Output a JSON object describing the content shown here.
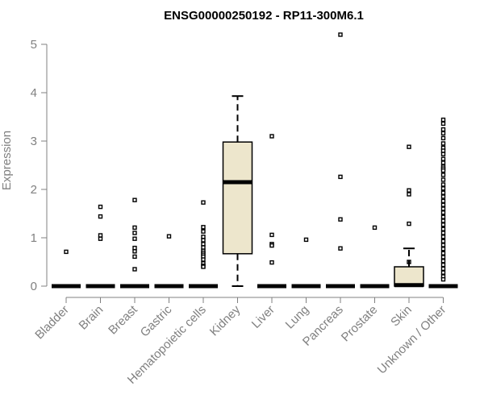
{
  "chart_data": {
    "type": "box",
    "title": "ENSG00000250192 - RP11-300M6.1",
    "xlabel": "",
    "ylabel": "Expression",
    "ylim": [
      0,
      5.2
    ],
    "yticks": [
      0,
      1,
      2,
      3,
      4,
      5
    ],
    "categories": [
      "Bladder",
      "Brain",
      "Breast",
      "Gastric",
      "Hematopoietic cells",
      "Kidney",
      "Liver",
      "Lung",
      "Pancreas",
      "Prostate",
      "Skin",
      "Unknown / Other"
    ],
    "box_color": "#ede6cc",
    "boxes": [
      {
        "category": "Bladder",
        "q1": 0,
        "median": 0,
        "q3": 0,
        "whisker_low": 0,
        "whisker_high": 0,
        "outliers": [
          0.71
        ]
      },
      {
        "category": "Brain",
        "q1": 0,
        "median": 0,
        "q3": 0,
        "whisker_low": 0,
        "whisker_high": 0,
        "outliers": [
          1.64,
          1.44,
          1.05,
          0.98
        ]
      },
      {
        "category": "Breast",
        "q1": 0,
        "median": 0,
        "q3": 0,
        "whisker_low": 0,
        "whisker_high": 0,
        "outliers": [
          1.78,
          1.21,
          1.1,
          0.98,
          0.79,
          0.72,
          0.61,
          0.35
        ]
      },
      {
        "category": "Gastric",
        "q1": 0,
        "median": 0,
        "q3": 0,
        "whisker_low": 0,
        "whisker_high": 0,
        "outliers": [
          1.03
        ]
      },
      {
        "category": "Hematopoietic cells",
        "q1": 0,
        "median": 0,
        "q3": 0,
        "whisker_low": 0,
        "whisker_high": 0,
        "outliers": [
          1.73,
          1.22,
          1.13,
          1.02,
          0.95,
          0.87,
          0.8,
          0.73,
          0.69,
          0.65,
          0.61,
          0.55,
          0.47,
          0.42,
          0.4
        ]
      },
      {
        "category": "Kidney",
        "q1": 0.67,
        "median": 2.15,
        "q3": 2.98,
        "whisker_low": 0,
        "whisker_high": 3.93,
        "outliers": []
      },
      {
        "category": "Liver",
        "q1": 0,
        "median": 0,
        "q3": 0,
        "whisker_low": 0,
        "whisker_high": 0,
        "outliers": [
          3.1,
          1.06,
          0.87,
          0.84,
          0.49
        ]
      },
      {
        "category": "Lung",
        "q1": 0,
        "median": 0,
        "q3": 0,
        "whisker_low": 0,
        "whisker_high": 0,
        "outliers": [
          0.96
        ]
      },
      {
        "category": "Pancreas",
        "q1": 0,
        "median": 0,
        "q3": 0,
        "whisker_low": 0,
        "whisker_high": 0,
        "outliers": [
          5.2,
          2.26,
          1.38,
          0.78
        ]
      },
      {
        "category": "Prostate",
        "q1": 0,
        "median": 0,
        "q3": 0,
        "whisker_low": 0,
        "whisker_high": 0,
        "outliers": [
          1.21
        ]
      },
      {
        "category": "Skin",
        "q1": 0,
        "median": 0.02,
        "q3": 0.4,
        "whisker_low": 0,
        "whisker_high": 0.78,
        "outliers": [
          2.88,
          1.98,
          1.9,
          1.29,
          0.5
        ]
      },
      {
        "category": "Unknown / Other",
        "q1": 0,
        "median": 0,
        "q3": 0,
        "whisker_low": 0,
        "whisker_high": 0,
        "outliers": [
          3.44,
          3.36,
          3.24,
          3.16,
          3.06,
          2.95,
          2.86,
          2.8,
          2.73,
          2.63,
          2.55,
          2.47,
          2.43,
          2.39,
          2.3,
          2.2,
          2.1,
          2.02,
          1.93,
          1.85,
          1.76,
          1.68,
          1.6,
          1.52,
          1.43,
          1.35,
          1.27,
          1.18,
          1.1,
          1.02,
          0.93,
          0.85,
          0.77,
          0.68,
          0.6,
          0.52,
          0.44,
          0.36,
          0.28,
          0.2,
          0.14
        ]
      }
    ]
  }
}
